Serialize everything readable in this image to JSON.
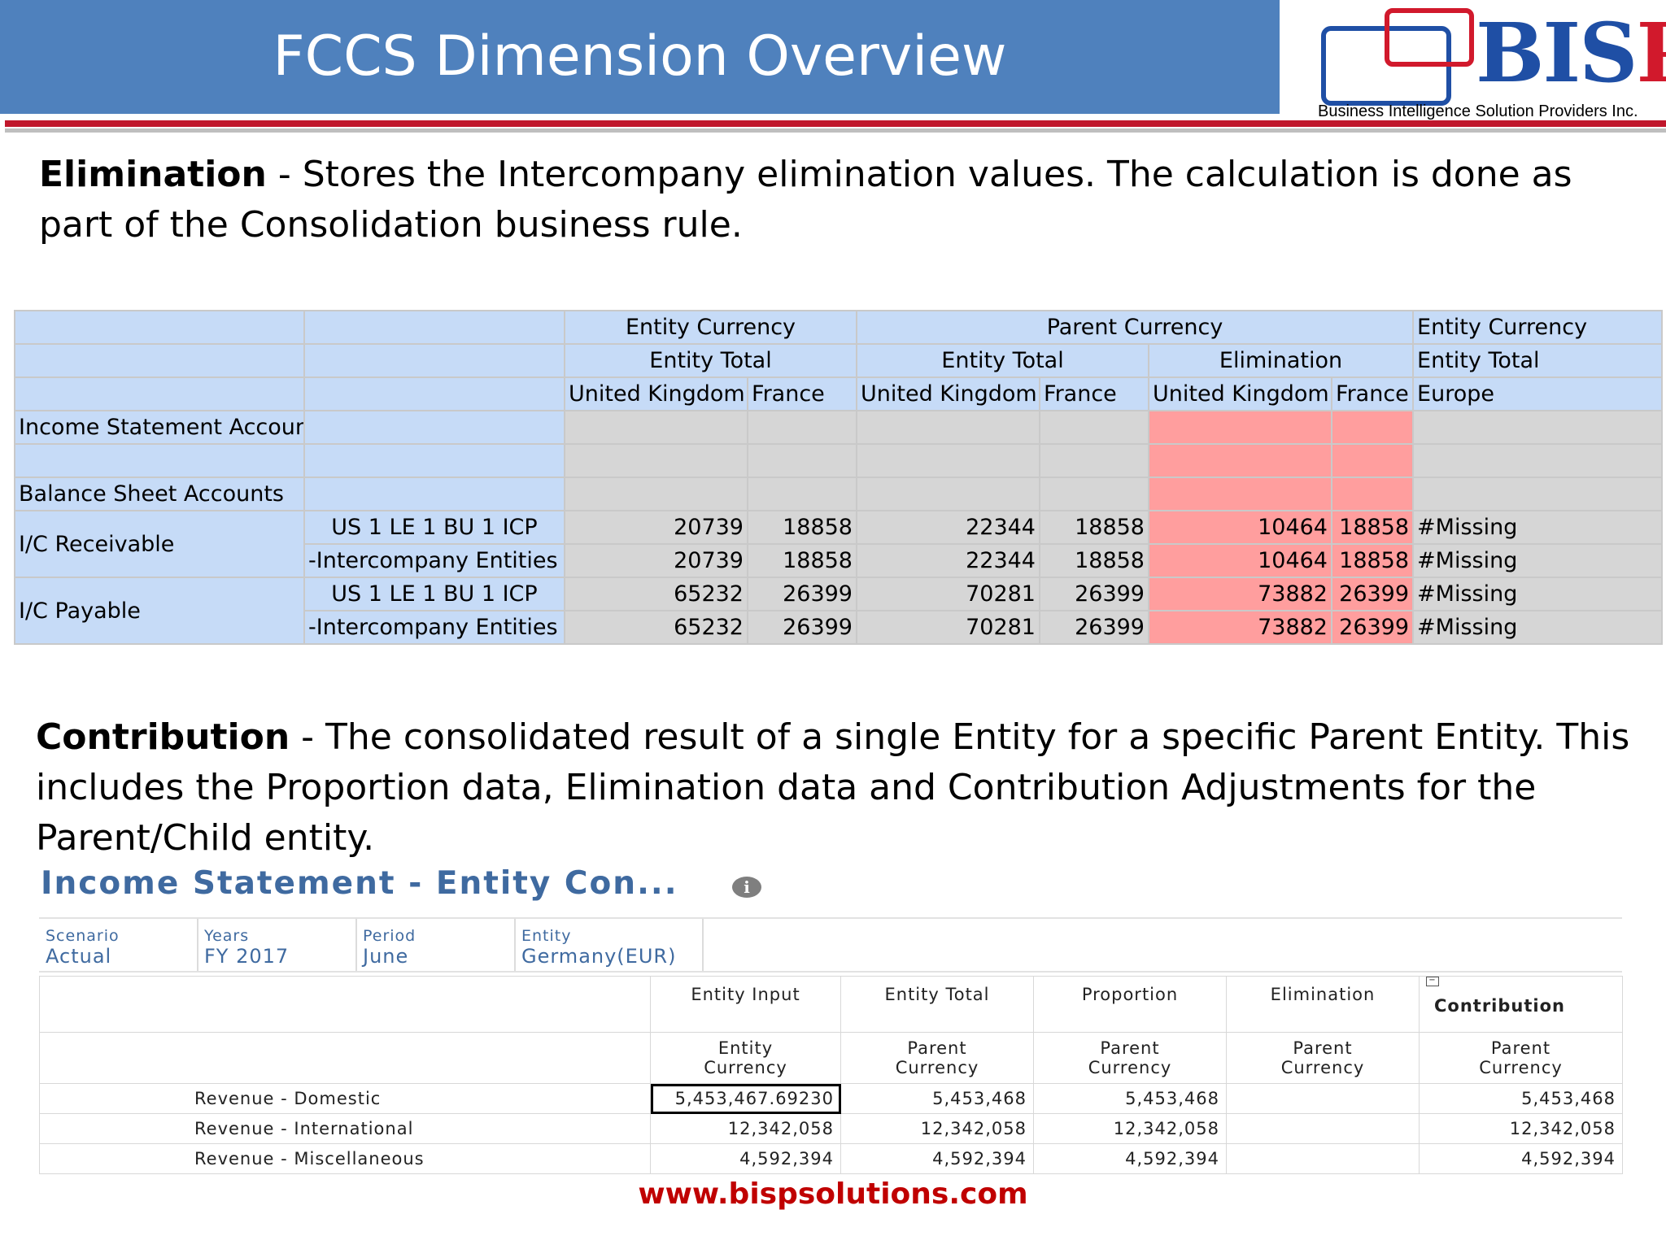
{
  "header": {
    "title": "FCCS Dimension Overview"
  },
  "logo": {
    "text_a": "BIS",
    "text_b": "P",
    "tagline": "Business Intelligence Solution Providers Inc."
  },
  "elimination": {
    "term": "Elimination",
    "text": " - Stores the Intercompany elimination values. The calculation is done as part of the Consolidation business rule."
  },
  "table1": {
    "hdr1": [
      "Entity Currency",
      "Parent Currency",
      "Entity Currency"
    ],
    "hdr2": [
      "Entity Total",
      "Entity Total",
      "Elimination",
      "Entity Total"
    ],
    "hdr3": [
      "United Kingdom",
      "France",
      "United Kingdom",
      "France",
      "United Kingdom",
      "France",
      "Europe"
    ],
    "income_label": "Income Statement Account",
    "balance_label": "Balance Sheet Accounts",
    "groups": [
      {
        "label": "I/C Receivable",
        "rows": [
          {
            "member": "US 1 LE 1 BU 1 ICP",
            "values": [
              "20739",
              "18858",
              "22344",
              "18858",
              "10464",
              "18858",
              "#Missing"
            ]
          },
          {
            "member": "-Intercompany Entities",
            "values": [
              "20739",
              "18858",
              "22344",
              "18858",
              "10464",
              "18858",
              "#Missing"
            ]
          }
        ]
      },
      {
        "label": "I/C Payable",
        "rows": [
          {
            "member": "US 1 LE 1 BU 1 ICP",
            "values": [
              "65232",
              "26399",
              "70281",
              "26399",
              "73882",
              "26399",
              "#Missing"
            ]
          },
          {
            "member": "-Intercompany Entities",
            "values": [
              "65232",
              "26399",
              "70281",
              "26399",
              "73882",
              "26399",
              "#Missing"
            ]
          }
        ]
      }
    ]
  },
  "contribution": {
    "term": "Contribution",
    "text": " - The consolidated result of a single Entity for a specific Parent Entity. This includes the Proportion data, Elimination data and Contribution Adjustments for the Parent/Child entity."
  },
  "form": {
    "title": "Income Statement - Entity Con...",
    "info_icon": "i",
    "pov": [
      {
        "label": "Scenario",
        "value": "Actual"
      },
      {
        "label": "Years",
        "value": "FY 2017"
      },
      {
        "label": "Period",
        "value": "June"
      },
      {
        "label": "Entity",
        "value": "Germany(EUR)"
      }
    ],
    "cols1": [
      "Entity Input",
      "Entity Total",
      "Proportion",
      "Elimination",
      "Contribution"
    ],
    "cols2": [
      [
        "Entity",
        "Currency"
      ],
      [
        "Parent",
        "Currency"
      ],
      [
        "Parent",
        "Currency"
      ],
      [
        "Parent",
        "Currency"
      ],
      [
        "Parent",
        "Currency"
      ]
    ],
    "rows": [
      {
        "label": "Revenue - Domestic",
        "values": [
          "5,453,467.69230",
          "5,453,468",
          "5,453,468",
          "",
          "5,453,468"
        ]
      },
      {
        "label": "Revenue - International",
        "values": [
          "12,342,058",
          "12,342,058",
          "12,342,058",
          "",
          "12,342,058"
        ]
      },
      {
        "label": "Revenue - Miscellaneous",
        "values": [
          "4,592,394",
          "4,592,394",
          "4,592,394",
          "",
          "4,592,394"
        ]
      }
    ]
  },
  "footer": {
    "url": "www.bispsolutions.com"
  }
}
